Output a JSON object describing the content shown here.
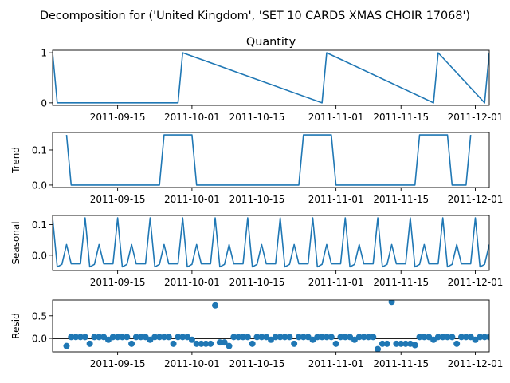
{
  "title": "Decomposition for ('United Kingdom', 'SET 10 CARDS XMAS CHOIR 17068')",
  "line_color": "#1f77b4",
  "chart_data": [
    {
      "type": "line",
      "title": "Quantity",
      "ylabel": "",
      "xlim": [
        "2011-09-01",
        "2011-12-04"
      ],
      "ylim": [
        -0.05,
        1.05
      ],
      "yticks": [
        0,
        1
      ],
      "ytick_labels": [
        "0",
        "1"
      ],
      "xtick_labels": [
        "2011-09-15",
        "2011-10-01",
        "2011-10-15",
        "2011-11-01",
        "2011-11-15",
        "2011-12-01"
      ],
      "x": [
        "2011-09-01",
        "2011-09-02",
        "2011-09-28",
        "2011-09-29",
        "2011-10-29",
        "2011-10-30",
        "2011-11-22",
        "2011-11-23",
        "2011-12-03",
        "2011-12-04"
      ],
      "y": [
        1,
        0,
        0,
        1,
        0,
        1,
        0,
        1,
        0,
        1
      ]
    },
    {
      "type": "line",
      "title": "",
      "ylabel": "Trend",
      "xlim": [
        "2011-09-01",
        "2011-12-04"
      ],
      "ylim": [
        -0.007,
        0.15
      ],
      "yticks": [
        0,
        0.1
      ],
      "ytick_labels": [
        "0.0",
        "0.1"
      ],
      "xtick_labels": [
        "2011-09-15",
        "2011-10-01",
        "2011-10-15",
        "2011-11-01",
        "2011-11-15",
        "2011-12-01"
      ],
      "x": [
        "2011-09-04",
        "2011-09-05",
        "2011-09-24",
        "2011-09-25",
        "2011-10-01",
        "2011-10-02",
        "2011-10-24",
        "2011-10-25",
        "2011-10-31",
        "2011-11-01",
        "2011-11-18",
        "2011-11-19",
        "2011-11-25",
        "2011-11-26",
        "2011-11-29",
        "2011-11-30"
      ],
      "y": [
        0.143,
        0,
        0,
        0.143,
        0.143,
        0,
        0,
        0.143,
        0.143,
        0,
        0,
        0.143,
        0.143,
        0,
        0,
        0.143
      ]
    },
    {
      "type": "line",
      "title": "",
      "ylabel": "Seasonal",
      "xlim": [
        "2011-09-01",
        "2011-12-04"
      ],
      "ylim": [
        -0.05,
        0.13
      ],
      "yticks": [
        0,
        0.1
      ],
      "ytick_labels": [
        "0.0",
        "0.1"
      ],
      "xtick_labels": [
        "2011-09-15",
        "2011-10-01",
        "2011-10-15",
        "2011-11-01",
        "2011-11-15",
        "2011-12-01"
      ],
      "period_pattern": [
        0.122,
        -0.038,
        -0.03,
        0.035,
        -0.028,
        -0.028,
        -0.028
      ],
      "x_start": "2011-09-01",
      "n_points": 95
    },
    {
      "type": "scatter",
      "title": "",
      "ylabel": "Resid",
      "xlim": [
        "2011-09-01",
        "2011-12-04"
      ],
      "ylim": [
        -0.3,
        0.85
      ],
      "yticks": [
        0,
        0.5
      ],
      "ytick_labels": [
        "0.0",
        "0.5"
      ],
      "xtick_labels": [
        "2011-09-15",
        "2011-10-01",
        "2011-10-15",
        "2011-11-01",
        "2011-11-15",
        "2011-12-01"
      ],
      "x_start": "2011-09-04",
      "y": [
        -0.17,
        0.03,
        0.03,
        0.03,
        0.03,
        -0.12,
        0.03,
        0.03,
        0.03,
        -0.03,
        0.03,
        0.03,
        0.03,
        0.03,
        -0.12,
        0.03,
        0.03,
        0.03,
        -0.03,
        0.03,
        0.03,
        0.03,
        0.03,
        -0.12,
        0.03,
        0.03,
        0.03,
        -0.03,
        -0.12,
        -0.12,
        -0.12,
        -0.12,
        0.73,
        -0.09,
        -0.09,
        -0.17,
        0.03,
        0.03,
        0.03,
        0.03,
        -0.12,
        0.03,
        0.03,
        0.03,
        -0.03,
        0.03,
        0.03,
        0.03,
        0.03,
        -0.12,
        0.03,
        0.03,
        0.03,
        -0.03,
        0.03,
        0.03,
        0.03,
        0.03,
        -0.12,
        0.03,
        0.03,
        0.03,
        -0.03,
        0.03,
        0.03,
        0.03,
        0.03,
        -0.24,
        -0.12,
        -0.12,
        0.81,
        -0.12,
        -0.12,
        -0.12,
        -0.12,
        -0.15,
        0.03,
        0.03,
        0.03,
        -0.03,
        0.03,
        0.03,
        0.03,
        0.03,
        -0.12,
        0.03,
        0.03,
        0.03,
        -0.03,
        0.03,
        0.03,
        0.03,
        0.03,
        -0.12,
        0.03,
        0.03,
        0.03,
        -0.03,
        -0.12,
        -0.12,
        -0.12,
        0.73,
        -0.09,
        -0.12,
        -0.17,
        0.03,
        0.03,
        0.03,
        0.03,
        -0.12,
        -0.09
      ],
      "zero_line": true
    }
  ]
}
